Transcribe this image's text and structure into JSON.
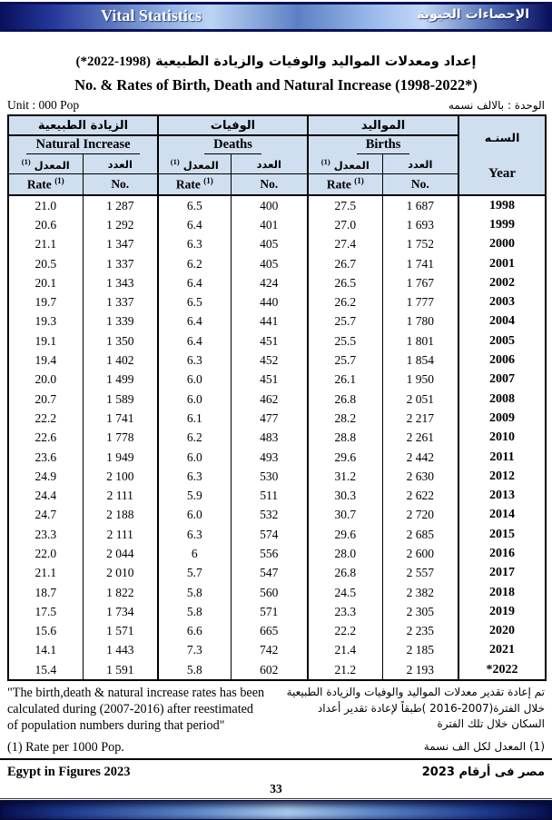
{
  "colors": {
    "banner_navy": "#0a1160",
    "header_bg": "#cfdff0",
    "banner_highlight": "#bcd5f5"
  },
  "banner": {
    "title_en": "Vital Statistics",
    "title_ar": "الإحصاءات الحيوية"
  },
  "titles": {
    "ar_text": "إعداد ومعدلات المواليد والوفيات والزيادة الطبيعية",
    "ar_range": "(*2022-1998)",
    "en": "No. & Rates of Birth, Death and Natural Increase (1998-2022*)"
  },
  "unit": {
    "en": "Unit : 000 Pop",
    "ar": "الوحدة : بالالف نسمه"
  },
  "table": {
    "groups": {
      "natural_increase": {
        "ar": "الزيادة الطبيعية",
        "en": "Natural Increase"
      },
      "deaths": {
        "ar": "الوفيات",
        "en": "Deaths"
      },
      "births": {
        "ar": "المواليد",
        "en": "Births"
      }
    },
    "subheaders": {
      "rate_ar": "المعدل",
      "rate_en": "Rate",
      "sup": "(1)",
      "no_ar": "العدد",
      "no_en": "No."
    },
    "year": {
      "ar": "السنـه",
      "en": "Year"
    },
    "rows": [
      {
        "year": "1998",
        "ni_rate": "21.0",
        "ni_no": "1 287",
        "d_rate": "6.5",
        "d_no": "400",
        "b_rate": "27.5",
        "b_no": "1 687"
      },
      {
        "year": "1999",
        "ni_rate": "20.6",
        "ni_no": "1 292",
        "d_rate": "6.4",
        "d_no": "401",
        "b_rate": "27.0",
        "b_no": "1 693"
      },
      {
        "year": "2000",
        "ni_rate": "21.1",
        "ni_no": "1 347",
        "d_rate": "6.3",
        "d_no": "405",
        "b_rate": "27.4",
        "b_no": "1 752"
      },
      {
        "year": "2001",
        "ni_rate": "20.5",
        "ni_no": "1 337",
        "d_rate": "6.2",
        "d_no": "405",
        "b_rate": "26.7",
        "b_no": "1 741"
      },
      {
        "year": "2002",
        "ni_rate": "20.1",
        "ni_no": "1 343",
        "d_rate": "6.4",
        "d_no": "424",
        "b_rate": "26.5",
        "b_no": "1 767"
      },
      {
        "year": "2003",
        "ni_rate": "19.7",
        "ni_no": "1 337",
        "d_rate": "6.5",
        "d_no": "440",
        "b_rate": "26.2",
        "b_no": "1 777"
      },
      {
        "year": "2004",
        "ni_rate": "19.3",
        "ni_no": "1 339",
        "d_rate": "6.4",
        "d_no": "441",
        "b_rate": "25.7",
        "b_no": "1 780"
      },
      {
        "year": "2005",
        "ni_rate": "19.1",
        "ni_no": "1 350",
        "d_rate": "6.4",
        "d_no": "451",
        "b_rate": "25.5",
        "b_no": "1 801"
      },
      {
        "year": "2006",
        "ni_rate": "19.4",
        "ni_no": "1 402",
        "d_rate": "6.3",
        "d_no": "452",
        "b_rate": "25.7",
        "b_no": "1 854"
      },
      {
        "year": "2007",
        "ni_rate": "20.0",
        "ni_no": "1 499",
        "d_rate": "6.0",
        "d_no": "451",
        "b_rate": "26.1",
        "b_no": "1 950"
      },
      {
        "year": "2008",
        "ni_rate": "20.7",
        "ni_no": "1 589",
        "d_rate": "6.0",
        "d_no": "462",
        "b_rate": "26.8",
        "b_no": "2 051"
      },
      {
        "year": "2009",
        "ni_rate": "22.2",
        "ni_no": "1 741",
        "d_rate": "6.1",
        "d_no": "477",
        "b_rate": "28.2",
        "b_no": "2 217"
      },
      {
        "year": "2010",
        "ni_rate": "22.6",
        "ni_no": "1 778",
        "d_rate": "6.2",
        "d_no": "483",
        "b_rate": "28.8",
        "b_no": "2 261"
      },
      {
        "year": "2011",
        "ni_rate": "23.6",
        "ni_no": "1 949",
        "d_rate": "6.0",
        "d_no": "493",
        "b_rate": "29.6",
        "b_no": "2 442"
      },
      {
        "year": "2012",
        "ni_rate": "24.9",
        "ni_no": "2 100",
        "d_rate": "6.3",
        "d_no": "530",
        "b_rate": "31.2",
        "b_no": "2 630"
      },
      {
        "year": "2013",
        "ni_rate": "24.4",
        "ni_no": "2 111",
        "d_rate": "5.9",
        "d_no": "511",
        "b_rate": "30.3",
        "b_no": "2 622"
      },
      {
        "year": "2014",
        "ni_rate": "24.7",
        "ni_no": "2 188",
        "d_rate": "6.0",
        "d_no": "532",
        "b_rate": "30.7",
        "b_no": "2 720"
      },
      {
        "year": "2015",
        "ni_rate": "23.3",
        "ni_no": "2 111",
        "d_rate": "6.3",
        "d_no": "574",
        "b_rate": "29.6",
        "b_no": "2 685"
      },
      {
        "year": "2016",
        "ni_rate": "22.0",
        "ni_no": "2 044",
        "d_rate": "6",
        "d_no": "556",
        "b_rate": "28.0",
        "b_no": "2 600"
      },
      {
        "year": "2017",
        "ni_rate": "21.1",
        "ni_no": "2 010",
        "d_rate": "5.7",
        "d_no": "547",
        "b_rate": "26.8",
        "b_no": "2 557"
      },
      {
        "year": "2018",
        "ni_rate": "18.7",
        "ni_no": "1 822",
        "d_rate": "5.8",
        "d_no": "560",
        "b_rate": "24.5",
        "b_no": "2 382"
      },
      {
        "year": "2019",
        "ni_rate": "17.5",
        "ni_no": "1 734",
        "d_rate": "5.8",
        "d_no": "571",
        "b_rate": "23.3",
        "b_no": "2 305"
      },
      {
        "year": "2020",
        "ni_rate": "15.6",
        "ni_no": "1 571",
        "d_rate": "6.6",
        "d_no": "665",
        "b_rate": "22.2",
        "b_no": "2 235"
      },
      {
        "year": "2021",
        "ni_rate": "14.1",
        "ni_no": "1 443",
        "d_rate": "7.3",
        "d_no": "742",
        "b_rate": "21.4",
        "b_no": "2 185"
      },
      {
        "year": "*2022",
        "ni_rate": "15.4",
        "ni_no": "1 591",
        "d_rate": "5.8",
        "d_no": "602",
        "b_rate": "21.2",
        "b_no": "2 193"
      }
    ]
  },
  "footnotes": {
    "en_lines": [
      "\"The birth,death & natural increase rates has been",
      "calculated during (2007-2016) after reestimated",
      "of  population numbers during that period\""
    ],
    "en_rate": "(1) Rate per 1000 Pop.",
    "ar_lines": [
      "تم إعادة تقدير معدلات المواليد والوفيات والزيادة الطبيعية",
      "خلال الفترة(2007-2016 )طبقاً لإعادة تقدير أعداد",
      "السكان خلال تلك الفترة"
    ],
    "ar_rate": "(1) المعدل لكل الف نسمة"
  },
  "footer": {
    "en": "Egypt in Figures 2023",
    "ar": "مصر فى أرقام 2023",
    "page": "33"
  }
}
